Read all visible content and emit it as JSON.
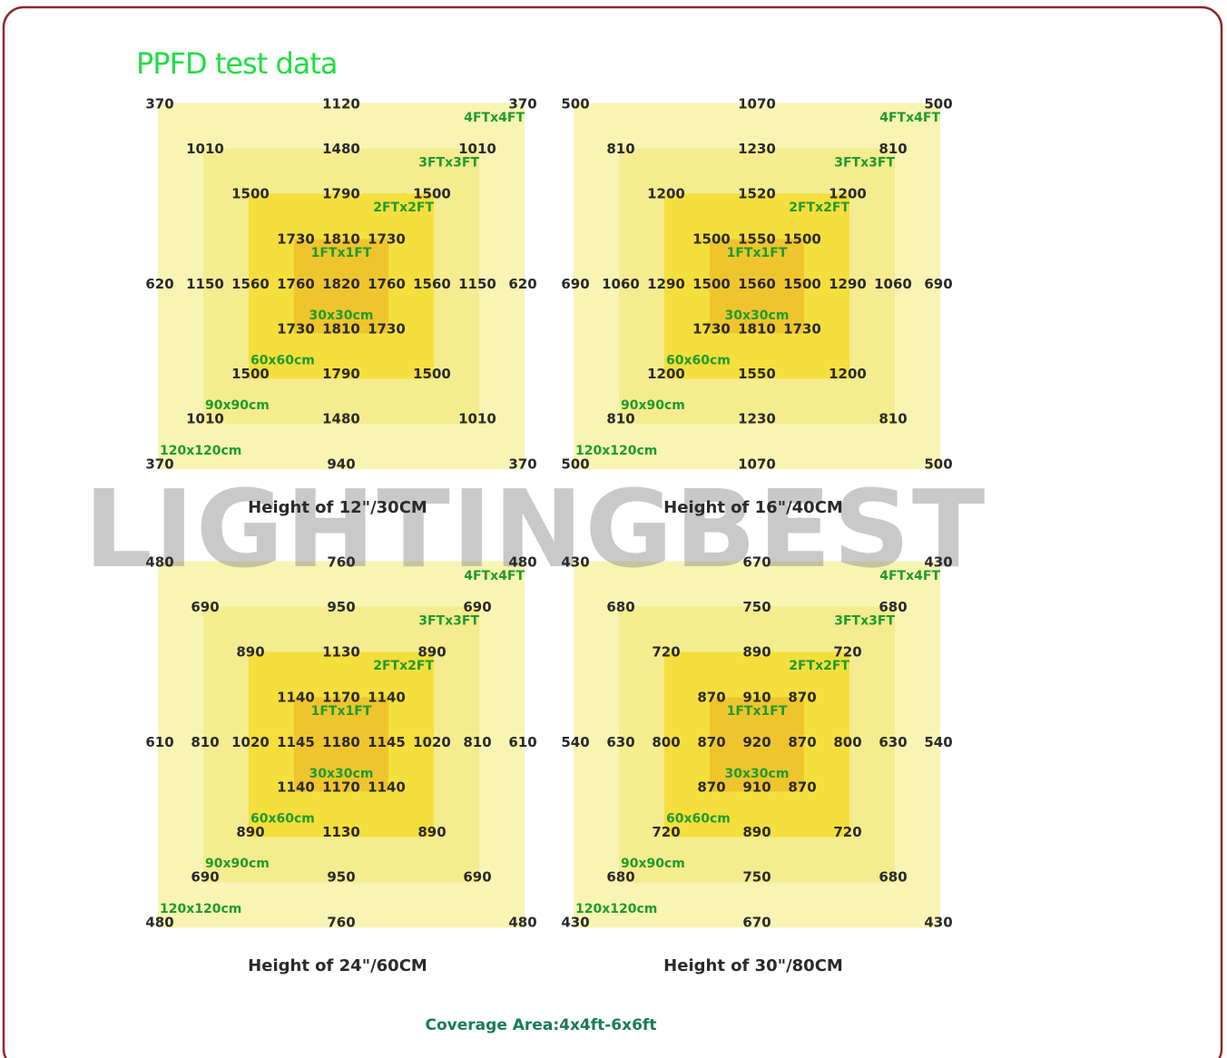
{
  "title": "PPFD test data",
  "watermark": "LIGHTINGBEST",
  "ft_labels": [
    "4FTx4FT",
    "3FTx3FT",
    "2FTx2FT",
    "1FTx1FT"
  ],
  "cm_labels": [
    "30x30cm",
    "60x60cm",
    "90x90cm",
    "120x120cm"
  ],
  "panels": [
    {
      "caption": "Height of 12\"/30CM",
      "rows": [
        [
          370,
          1120,
          370
        ],
        [
          1010,
          1480,
          1010
        ],
        [
          1500,
          1790,
          1500
        ],
        [
          1730,
          1810,
          1730
        ],
        [
          620,
          1150,
          1560,
          1760,
          1820,
          1760,
          1560,
          1150,
          620
        ],
        [
          1730,
          1810,
          1730
        ],
        [
          1500,
          1790,
          1500
        ],
        [
          1010,
          1480,
          1010
        ],
        [
          370,
          940,
          370
        ]
      ]
    },
    {
      "caption": "Height of 16\"/40CM",
      "rows": [
        [
          500,
          1070,
          500
        ],
        [
          810,
          1230,
          810
        ],
        [
          1200,
          1520,
          1200
        ],
        [
          1500,
          1550,
          1500
        ],
        [
          690,
          1060,
          1290,
          1500,
          1560,
          1500,
          1290,
          1060,
          690
        ],
        [
          1730,
          1810,
          1730
        ],
        [
          1200,
          1550,
          1200
        ],
        [
          810,
          1230,
          810
        ],
        [
          500,
          1070,
          500
        ]
      ]
    },
    {
      "caption": "Height of 24\"/60CM",
      "rows": [
        [
          480,
          760,
          480
        ],
        [
          690,
          950,
          690
        ],
        [
          890,
          1130,
          890
        ],
        [
          1140,
          1170,
          1140
        ],
        [
          610,
          810,
          1020,
          1145,
          1180,
          1145,
          1020,
          810,
          610
        ],
        [
          1140,
          1170,
          1140
        ],
        [
          890,
          1130,
          890
        ],
        [
          690,
          950,
          690
        ],
        [
          480,
          760,
          480
        ]
      ]
    },
    {
      "caption": "Height of 30\"/80CM",
      "rows": [
        [
          430,
          670,
          430
        ],
        [
          680,
          750,
          680
        ],
        [
          720,
          890,
          720
        ],
        [
          870,
          910,
          870
        ],
        [
          540,
          630,
          800,
          870,
          920,
          870,
          800,
          630,
          540
        ],
        [
          870,
          910,
          870
        ],
        [
          720,
          890,
          720
        ],
        [
          680,
          750,
          680
        ],
        [
          430,
          670,
          430
        ]
      ]
    }
  ],
  "footer": "Coverage Area:4x4ft-6x6ft"
}
